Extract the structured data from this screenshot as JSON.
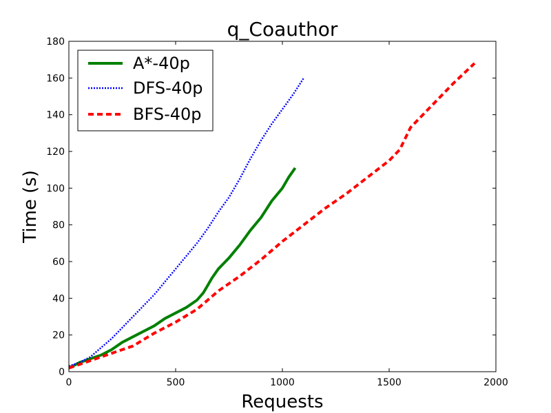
{
  "chart_data": {
    "type": "line",
    "title": "q_Coauthor",
    "xlabel": "Requests",
    "ylabel": "Time (s)",
    "xlim": [
      0,
      2000
    ],
    "ylim": [
      0,
      180
    ],
    "xticks": [
      0,
      500,
      1000,
      1500,
      2000
    ],
    "yticks": [
      0,
      20,
      40,
      60,
      80,
      100,
      120,
      140,
      160,
      180
    ],
    "grid": false,
    "legend_position": "top-left",
    "series": [
      {
        "name": "A*-40p",
        "color": "#008000",
        "style": "solid",
        "points": [
          [
            0,
            2
          ],
          [
            50,
            5
          ],
          [
            100,
            7
          ],
          [
            150,
            9
          ],
          [
            200,
            12
          ],
          [
            250,
            16
          ],
          [
            300,
            19
          ],
          [
            350,
            22
          ],
          [
            400,
            25
          ],
          [
            450,
            29
          ],
          [
            500,
            32
          ],
          [
            550,
            35
          ],
          [
            600,
            39
          ],
          [
            630,
            43
          ],
          [
            650,
            47
          ],
          [
            670,
            51
          ],
          [
            700,
            56
          ],
          [
            750,
            62
          ],
          [
            800,
            69
          ],
          [
            850,
            77
          ],
          [
            900,
            84
          ],
          [
            950,
            93
          ],
          [
            1000,
            100
          ],
          [
            1030,
            106
          ],
          [
            1060,
            111
          ]
        ]
      },
      {
        "name": "DFS-40p",
        "color": "#0000ff",
        "style": "dotted",
        "points": [
          [
            0,
            3
          ],
          [
            50,
            5
          ],
          [
            100,
            8
          ],
          [
            150,
            13
          ],
          [
            200,
            18
          ],
          [
            250,
            24
          ],
          [
            300,
            30
          ],
          [
            350,
            36
          ],
          [
            400,
            42
          ],
          [
            450,
            49
          ],
          [
            500,
            56
          ],
          [
            550,
            63
          ],
          [
            600,
            70
          ],
          [
            650,
            78
          ],
          [
            700,
            87
          ],
          [
            750,
            95
          ],
          [
            800,
            105
          ],
          [
            850,
            116
          ],
          [
            900,
            126
          ],
          [
            950,
            135
          ],
          [
            1000,
            143
          ],
          [
            1050,
            151
          ],
          [
            1100,
            160
          ]
        ]
      },
      {
        "name": "BFS-40p",
        "color": "#ff0000",
        "style": "dashed",
        "points": [
          [
            0,
            2
          ],
          [
            100,
            6
          ],
          [
            200,
            10
          ],
          [
            300,
            14
          ],
          [
            400,
            21
          ],
          [
            500,
            27
          ],
          [
            600,
            34
          ],
          [
            700,
            44
          ],
          [
            800,
            52
          ],
          [
            900,
            61
          ],
          [
            1000,
            71
          ],
          [
            1100,
            80
          ],
          [
            1200,
            89
          ],
          [
            1300,
            97
          ],
          [
            1400,
            106
          ],
          [
            1500,
            115
          ],
          [
            1550,
            121
          ],
          [
            1600,
            133
          ],
          [
            1700,
            145
          ],
          [
            1800,
            157
          ],
          [
            1900,
            168
          ]
        ]
      }
    ]
  }
}
